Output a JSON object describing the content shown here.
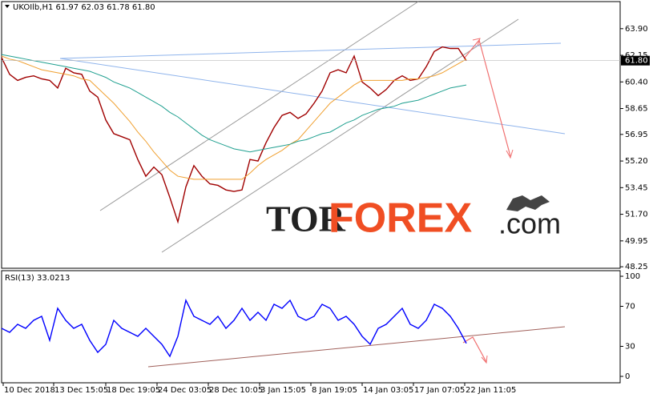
{
  "chart_data": [
    {
      "type": "line",
      "title": "UKOIlb,H1  61.97 62.03 61.78 61.80",
      "x": [
        0,
        10,
        20,
        30,
        40,
        50,
        60,
        70,
        80,
        90,
        100,
        110,
        120,
        130,
        140,
        150,
        160,
        170,
        180,
        190,
        200,
        210,
        220,
        230,
        240,
        250,
        260,
        270,
        280,
        290,
        300,
        310,
        320,
        330,
        340,
        350,
        360,
        370,
        380,
        390,
        400,
        410,
        420,
        430,
        440,
        450,
        460,
        470,
        480,
        490,
        500,
        510,
        520,
        530,
        540,
        550,
        560,
        570,
        580
      ],
      "xlim": [
        0,
        772
      ],
      "ylim": [
        48.15,
        65.68
      ],
      "yticks": [
        {
          "value": 63.9,
          "label": "63.90"
        },
        {
          "value": 62.15,
          "label": "62.15"
        },
        {
          "value": 60.4,
          "label": "60.40"
        },
        {
          "value": 58.65,
          "label": "58.65"
        },
        {
          "value": 56.95,
          "label": "56.95"
        },
        {
          "value": 55.2,
          "label": "55.20"
        },
        {
          "value": 53.45,
          "label": "53.45"
        },
        {
          "value": 51.7,
          "label": "51.70"
        },
        {
          "value": 49.95,
          "label": "49.95"
        },
        {
          "value": 48.25,
          "label": "48.25"
        }
      ],
      "last_price": {
        "value": 61.8,
        "label": "61.80"
      },
      "series": [
        {
          "color": "#a00000",
          "values": [
            62.0,
            60.9,
            60.5,
            60.7,
            60.8,
            60.6,
            60.5,
            60.0,
            61.3,
            61.0,
            60.9,
            59.8,
            59.4,
            57.9,
            57.0,
            56.8,
            56.6,
            55.3,
            54.2,
            54.8,
            54.3,
            52.8,
            51.2,
            53.5,
            54.9,
            54.2,
            53.7,
            53.6,
            53.3,
            53.2,
            53.3,
            55.3,
            55.2,
            56.4,
            57.4,
            58.2,
            58.4,
            58.0,
            58.3,
            59.0,
            59.8,
            61.0,
            61.2,
            61.0,
            62.1,
            60.4,
            60.0,
            59.5,
            59.9,
            60.5,
            60.8,
            60.5,
            60.6,
            61.4,
            62.4,
            62.7,
            62.6,
            62.6,
            61.8
          ]
        },
        {
          "color": "#f0a030",
          "values": [
            62.1,
            61.9,
            61.8,
            61.6,
            61.4,
            61.2,
            61.1,
            61.0,
            60.9,
            60.8,
            60.6,
            60.5,
            60.0,
            59.5,
            59.0,
            58.4,
            57.8,
            57.1,
            56.5,
            55.8,
            55.2,
            54.6,
            54.2,
            54.1,
            54.0,
            54.0,
            54.0,
            54.0,
            54.0,
            54.0,
            54.0,
            54.4,
            54.9,
            55.3,
            55.6,
            55.9,
            56.3,
            56.6,
            57.2,
            57.8,
            58.4,
            59.0,
            59.4,
            59.8,
            60.2,
            60.5,
            60.5,
            60.5,
            60.5,
            60.5,
            60.5,
            60.6,
            60.6,
            60.7,
            60.8,
            61.0,
            61.3,
            61.6,
            61.9
          ]
        },
        {
          "color": "#20a090",
          "values": [
            62.2,
            62.1,
            62.0,
            61.9,
            61.8,
            61.7,
            61.6,
            61.5,
            61.4,
            61.3,
            61.2,
            61.1,
            60.9,
            60.7,
            60.4,
            60.2,
            60.0,
            59.7,
            59.4,
            59.1,
            58.8,
            58.4,
            58.1,
            57.7,
            57.3,
            56.9,
            56.6,
            56.4,
            56.2,
            56.0,
            55.9,
            55.8,
            55.9,
            56.0,
            56.1,
            56.2,
            56.3,
            56.5,
            56.6,
            56.8,
            57.0,
            57.1,
            57.4,
            57.7,
            57.9,
            58.2,
            58.4,
            58.6,
            58.7,
            58.8,
            59.0,
            59.1,
            59.2,
            59.4,
            59.6,
            59.8,
            60.0,
            60.1,
            60.2
          ]
        }
      ]
    },
    {
      "type": "line",
      "title": "RSI(13) 33.0213",
      "x": [
        0,
        10,
        20,
        30,
        40,
        50,
        60,
        70,
        80,
        90,
        100,
        110,
        120,
        130,
        140,
        150,
        160,
        170,
        180,
        190,
        200,
        210,
        220,
        230,
        240,
        250,
        260,
        270,
        280,
        290,
        300,
        310,
        320,
        330,
        340,
        350,
        360,
        370,
        380,
        390,
        400,
        410,
        420,
        430,
        440,
        450,
        460,
        470,
        480,
        490,
        500,
        510,
        520,
        530,
        540,
        550,
        560,
        570,
        580
      ],
      "xlim": [
        0,
        772
      ],
      "xticks": [
        {
          "value": 2,
          "label": "10 Dec 2018"
        },
        {
          "value": 65,
          "label": "13 Dec 15:05"
        },
        {
          "value": 130,
          "label": "18 Dec 19:05"
        },
        {
          "value": 194,
          "label": "24 Dec 03:05"
        },
        {
          "value": 258,
          "label": "28 Dec 10:05"
        },
        {
          "value": 322,
          "label": "3 Jan 15:05"
        },
        {
          "value": 386,
          "label": "8 Jan 19:05"
        },
        {
          "value": 450,
          "label": "14 Jan 03:05"
        },
        {
          "value": 514,
          "label": "17 Jan 07:05"
        },
        {
          "value": 578,
          "label": "22 Jan 11:05"
        }
      ],
      "ylim": [
        -6.4,
        105.6
      ],
      "yticks": [
        100,
        70,
        30,
        0
      ],
      "series": [
        {
          "color": "#0000ff",
          "values": [
            48,
            44,
            52,
            48,
            56,
            60,
            36,
            68,
            56,
            48,
            52,
            36,
            24,
            32,
            56,
            48,
            44,
            40,
            48,
            40,
            32,
            20,
            40,
            76,
            60,
            56,
            52,
            60,
            48,
            56,
            68,
            56,
            64,
            56,
            72,
            68,
            76,
            60,
            56,
            60,
            72,
            68,
            56,
            60,
            52,
            40,
            32,
            48,
            52,
            60,
            68,
            52,
            48,
            56,
            72,
            68,
            60,
            48,
            33
          ]
        }
      ]
    }
  ],
  "watermark": {
    "prefix": "TOR",
    "brand": "FOREX",
    "suffix": ".com"
  }
}
